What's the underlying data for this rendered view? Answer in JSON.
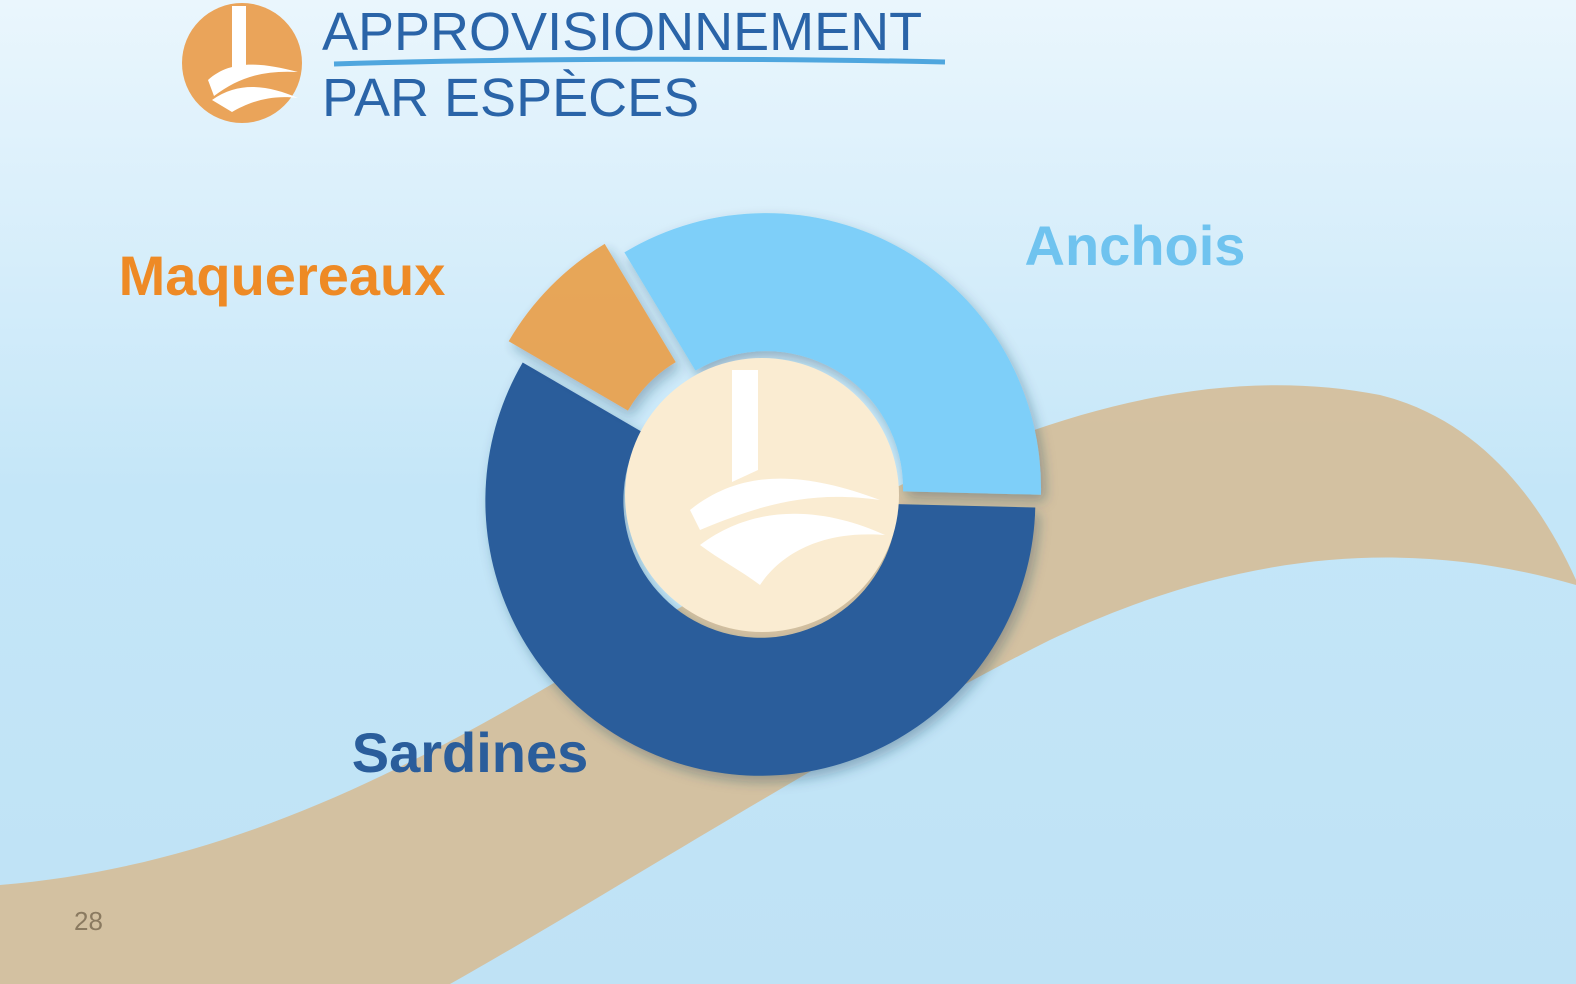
{
  "chart_data": {
    "type": "donut",
    "title": "APPROVISIONNEMENT",
    "subtitle": "PAR ESPÈCES",
    "categories": [
      "Anchois",
      "Sardines",
      "Maquereaux"
    ],
    "values": [
      34,
      58,
      8
    ],
    "colors": [
      "#7ecff9",
      "#2a5d9b",
      "#e9a04c"
    ]
  },
  "page_number": "28"
}
